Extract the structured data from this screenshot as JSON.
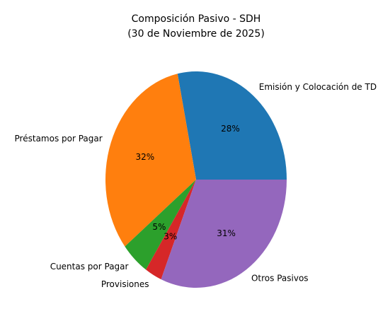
{
  "chart_data": {
    "type": "pie",
    "title": [
      "Composición Pasivo - SDH",
      "(30 de Noviembre de 2025)"
    ],
    "categories": [
      "Emisión y Colocación de TD",
      "Préstamos por Pagar",
      "Cuentas por Pagar",
      "Provisiones",
      "Otros Pasivos"
    ],
    "values": [
      28,
      32,
      5,
      3,
      31
    ],
    "value_labels": [
      "28%",
      "32%",
      "5%",
      "3%",
      "31%"
    ],
    "colors": [
      "#1f77b4",
      "#ff7f0e",
      "#2ca02c",
      "#d62728",
      "#9467bd"
    ]
  }
}
